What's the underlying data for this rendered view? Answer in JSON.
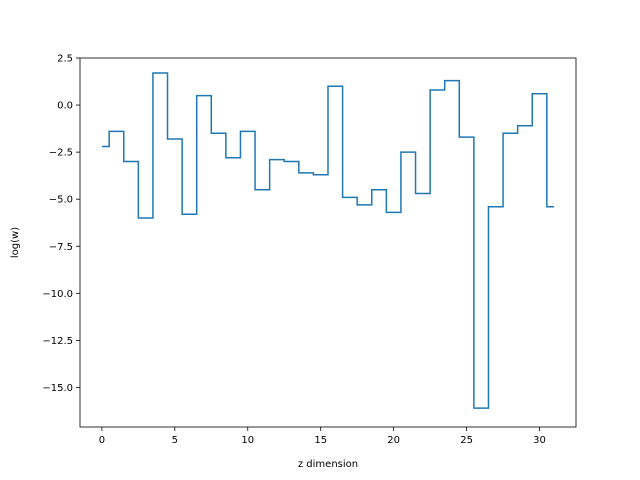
{
  "chart_data": {
    "type": "line",
    "drawstyle": "steps-mid",
    "title": "",
    "xlabel": "z dimension",
    "ylabel": "log(w)",
    "xlim": [
      -1.5,
      32.5
    ],
    "ylim": [
      -17.1,
      2.5
    ],
    "grid": false,
    "legend": "none",
    "xticks": [
      0,
      5,
      10,
      15,
      20,
      25,
      30
    ],
    "yticks": [
      2.5,
      0.0,
      -2.5,
      -5.0,
      -7.5,
      -10.0,
      -12.5,
      -15.0
    ],
    "ytick_labels": [
      "2.5",
      "0.0",
      "−2.5",
      "−5.0",
      "−7.5",
      "−10.0",
      "−12.5",
      "−15.0"
    ],
    "series": [
      {
        "color": "#1f77b4",
        "x": [
          0,
          1,
          2,
          3,
          4,
          5,
          6,
          7,
          8,
          9,
          10,
          11,
          12,
          13,
          14,
          15,
          16,
          17,
          18,
          19,
          20,
          21,
          22,
          23,
          24,
          25,
          26,
          27,
          28,
          29,
          30,
          31
        ],
        "y": [
          -2.2,
          -1.4,
          -3.0,
          -6.0,
          1.7,
          -1.8,
          -5.8,
          0.5,
          -1.5,
          -2.8,
          -1.4,
          -4.5,
          -2.9,
          -3.0,
          -3.6,
          -3.7,
          1.0,
          -4.9,
          -5.3,
          -4.5,
          -5.7,
          -2.5,
          -4.7,
          0.8,
          1.3,
          -1.7,
          -16.1,
          -5.4,
          -1.5,
          -1.1,
          0.6,
          -5.4
        ]
      }
    ]
  }
}
